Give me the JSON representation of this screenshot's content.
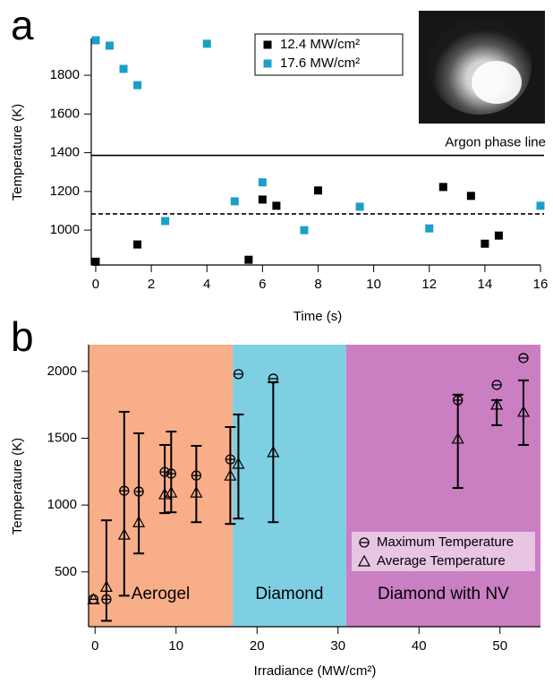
{
  "chart_data": [
    {
      "type": "scatter",
      "label": "a",
      "x_label": "Time (s)",
      "y_label": "Temperature (K)",
      "xlim": [
        -0.16,
        16
      ],
      "ylim": [
        820,
        1990
      ],
      "xticks": [
        0,
        2,
        4,
        6,
        8,
        10,
        12,
        14,
        16
      ],
      "yticks": [
        1000,
        1200,
        1400,
        1600,
        1800
      ],
      "legend": "upper right",
      "reference_lines": [
        {
          "value": 1386,
          "style": "solid",
          "label": "Argon phase line"
        },
        {
          "value": 1084,
          "style": "dashed"
        }
      ],
      "series": [
        {
          "name": "12.4 MW/cm²",
          "color": "#000000",
          "marker": "square",
          "x": [
            0,
            1.5,
            5.5,
            6,
            6.5,
            8,
            12.5,
            13.5,
            14,
            14.5
          ],
          "values": [
            837,
            926,
            847,
            1158,
            1126,
            1205,
            1223,
            1177,
            930,
            972
          ]
        },
        {
          "name": "17.6 MW/cm²",
          "color": "#1aa0c8",
          "marker": "square",
          "x": [
            0,
            0.5,
            1,
            1.5,
            2.5,
            4,
            5,
            6,
            7.5,
            9.5,
            12,
            16
          ],
          "values": [
            1981,
            1953,
            1833,
            1749,
            1047,
            1963,
            1149,
            1247,
            1000,
            1121,
            1009,
            1126
          ]
        }
      ]
    },
    {
      "type": "errorbar",
      "label": "b",
      "x_label": "Irradiance (MW/cm²)",
      "y_label": "Temperature (K)",
      "xlim": [
        -0.8,
        55
      ],
      "ylim": [
        90,
        2200
      ],
      "xticks": [
        0,
        10,
        20,
        30,
        40,
        50
      ],
      "yticks": [
        500,
        1000,
        1500,
        2000
      ],
      "legend": "lower right",
      "regions": [
        {
          "label": "Aerogel",
          "range": [
            -0.8,
            17
          ],
          "color": "#f8ae88"
        },
        {
          "label": "Diamond",
          "range": [
            17,
            31
          ],
          "color": "#7ecfe2"
        },
        {
          "label": "Diamond with NV",
          "range": [
            31,
            55
          ],
          "color": "#c97fc2"
        }
      ],
      "series": [
        {
          "name": "Maximum Temperature",
          "color": "#000000",
          "marker": "circle",
          "x": [
            -0.2,
            1.4,
            3.6,
            5.4,
            8.6,
            9.4,
            12.5,
            16.7,
            17.7,
            22.0,
            44.8,
            49.6,
            52.9
          ],
          "values": [
            295,
            295,
            1107,
            1101,
            1248,
            1235,
            1221,
            1342,
            1980,
            1946,
            1785,
            1899,
            2100
          ]
        },
        {
          "name": "Average Temperature",
          "color": "#000000",
          "marker": "triangle",
          "x": [
            -0.2,
            1.4,
            3.6,
            5.4,
            8.6,
            9.4,
            12.5,
            16.7,
            17.7,
            22.0,
            44.8,
            49.6,
            52.9
          ],
          "values": [
            295,
            389,
            779,
            872,
            1081,
            1094,
            1094,
            1221,
            1309,
            1396,
            1497,
            1752,
            1698
          ],
          "low": [
            null,
            134,
            322,
            638,
            940,
            946,
            872,
            859,
            899,
            872,
            1128,
            1597,
            1450
          ],
          "high": [
            null,
            886,
            1698,
            1537,
            1450,
            1550,
            1443,
            1584,
            1678,
            1919,
            1826,
            1785,
            1933
          ]
        }
      ]
    }
  ]
}
